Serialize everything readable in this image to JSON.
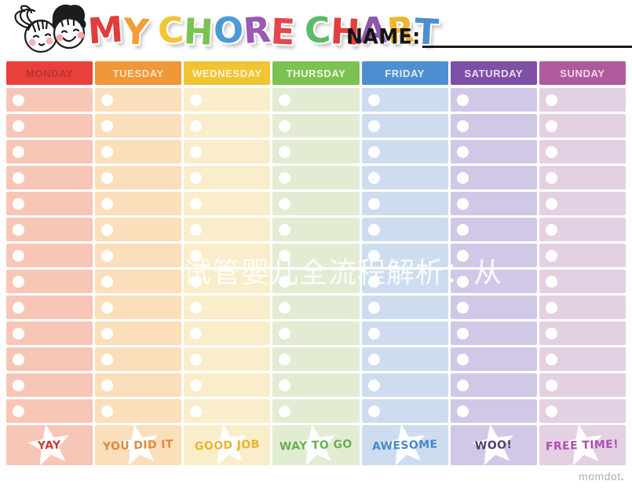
{
  "header": {
    "title_letters": [
      {
        "ch": "M",
        "color": "#e23c3c"
      },
      {
        "ch": "Y",
        "color": "#f59b38"
      },
      {
        "ch": " "
      },
      {
        "ch": "C",
        "color": "#f2c535"
      },
      {
        "ch": "H",
        "color": "#7cc253"
      },
      {
        "ch": "O",
        "color": "#4d9ad6"
      },
      {
        "ch": "R",
        "color": "#9a59b5"
      },
      {
        "ch": "E",
        "color": "#e4474d"
      },
      {
        "ch": " "
      },
      {
        "ch": "C",
        "color": "#5bbb6a"
      },
      {
        "ch": "H",
        "color": "#e24040"
      },
      {
        "ch": "A",
        "color": "#8e58a8"
      },
      {
        "ch": "R",
        "color": "#eeb52f"
      },
      {
        "ch": "T",
        "color": "#4a90d2"
      }
    ],
    "title_text": "MY CHORE CHART",
    "name_label": "NAME:",
    "name_value": ""
  },
  "table": {
    "rows_per_day": 13,
    "days": [
      {
        "label": "MONDAY",
        "header_bg": "#e8413c",
        "header_text": "#b93333",
        "cell_bg": "#f8c6b7",
        "reward_label": "YAY",
        "reward_color": "#cc3a36"
      },
      {
        "label": "TUESDAY",
        "header_bg": "#f0973a",
        "header_text": "#fce3bd",
        "cell_bg": "#fadfba",
        "reward_label": "YOU DID IT",
        "reward_color": "#e0893c"
      },
      {
        "label": "WEDNESDAY",
        "header_bg": "#f1c433",
        "header_text": "#fdf3d2",
        "cell_bg": "#f9edca",
        "reward_label": "GOOD JOB",
        "reward_color": "#e6b52e"
      },
      {
        "label": "THURSDAY",
        "header_bg": "#7cc251",
        "header_text": "#eef7e4",
        "cell_bg": "#e2ecd3",
        "reward_label": "WAY TO GO",
        "reward_color": "#67b04e"
      },
      {
        "label": "FRIDAY",
        "header_bg": "#4e8fd2",
        "header_text": "#e3eefa",
        "cell_bg": "#cdddef",
        "reward_label": "AWESOME",
        "reward_color": "#4a86c8"
      },
      {
        "label": "SATURDAY",
        "header_bg": "#7e50a5",
        "header_text": "#e9def2",
        "cell_bg": "#d1c8e7",
        "reward_label": "WOO!",
        "reward_color": "#4c3f6e"
      },
      {
        "label": "SUNDAY",
        "header_bg": "#b05a9e",
        "header_text": "#f0d6ea",
        "cell_bg": "#e3d1e3",
        "reward_label": "FREE TIME!",
        "reward_color": "#ad4fae"
      }
    ]
  },
  "watermark": "试管婴儿全流程解析：从",
  "footer": {
    "brand": "momdot",
    "dot": "."
  }
}
